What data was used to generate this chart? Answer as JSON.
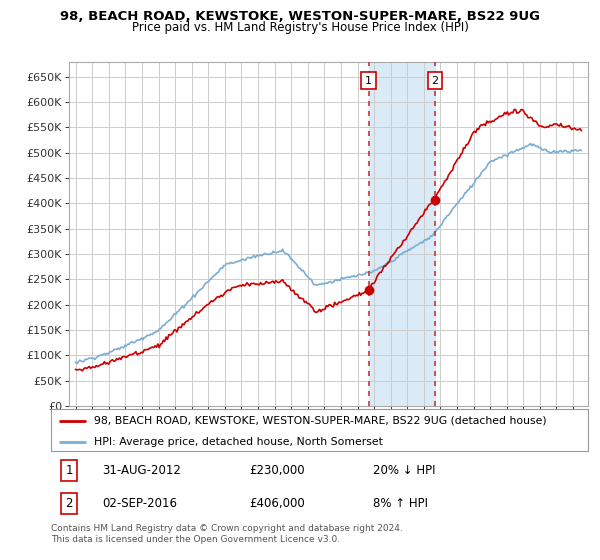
{
  "title_line1": "98, BEACH ROAD, KEWSTOKE, WESTON-SUPER-MARE, BS22 9UG",
  "title_line2": "Price paid vs. HM Land Registry's House Price Index (HPI)",
  "ylim": [
    0,
    680000
  ],
  "yticks": [
    0,
    50000,
    100000,
    150000,
    200000,
    250000,
    300000,
    350000,
    400000,
    450000,
    500000,
    550000,
    600000,
    650000
  ],
  "ytick_labels": [
    "£0",
    "£50K",
    "£100K",
    "£150K",
    "£200K",
    "£250K",
    "£300K",
    "£350K",
    "£400K",
    "£450K",
    "£500K",
    "£550K",
    "£600K",
    "£650K"
  ],
  "hpi_color": "#7aadd4",
  "price_color": "#cc0000",
  "shaded_region_color": "#daeaf7",
  "vline_color": "#cc3333",
  "point1_x": 2012.667,
  "point1_y": 230000,
  "point2_x": 2016.67,
  "point2_y": 406000,
  "xlim_left": 1994.6,
  "xlim_right": 2025.9,
  "legend_label_price": "98, BEACH ROAD, KEWSTOKE, WESTON-SUPER-MARE, BS22 9UG (detached house)",
  "legend_label_hpi": "HPI: Average price, detached house, North Somerset",
  "table_row1": [
    "1",
    "31-AUG-2012",
    "£230,000",
    "20% ↓ HPI"
  ],
  "table_row2": [
    "2",
    "02-SEP-2016",
    "£406,000",
    "8% ↑ HPI"
  ],
  "footnote": "Contains HM Land Registry data © Crown copyright and database right 2024.\nThis data is licensed under the Open Government Licence v3.0.",
  "background_color": "#ffffff",
  "grid_color": "#cccccc",
  "annotation_box_color": "#cc0000"
}
